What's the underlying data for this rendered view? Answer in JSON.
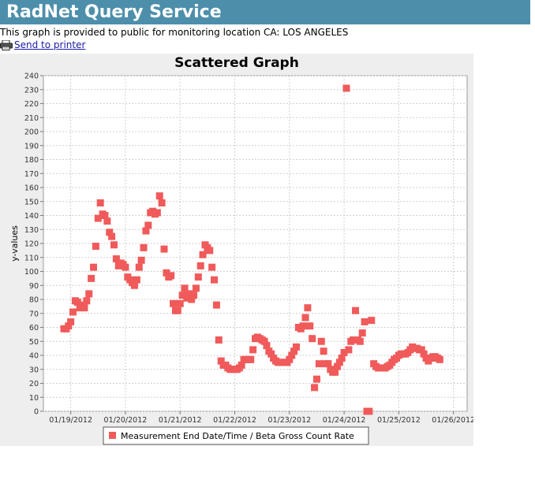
{
  "header": {
    "title": "RadNet Query Service"
  },
  "intro": {
    "text": "This graph is provided to public for monitoring location CA: LOS ANGELES"
  },
  "printer": {
    "link_label": "Send to printer",
    "icon": "printer-icon"
  },
  "colors": {
    "header_bg": "#4d8fab",
    "marker": "#f05a5a",
    "panel_bg": "#eeeeee",
    "plot_bg": "#ffffff",
    "grid": "#d0d0d0"
  },
  "chart_data": {
    "type": "scatter",
    "title": "Scattered Graph",
    "xlabel": "",
    "ylabel": "y-values",
    "grid": true,
    "legend_position": "bottom",
    "ylim": [
      0,
      240
    ],
    "yticks": [
      0,
      10,
      20,
      30,
      40,
      50,
      60,
      70,
      80,
      90,
      100,
      110,
      120,
      130,
      140,
      150,
      160,
      170,
      180,
      190,
      200,
      210,
      220,
      230,
      240
    ],
    "xlim": [
      "01/18/2012 12:00",
      "01/26/2012 06:00"
    ],
    "xticks": [
      "01/19/2012",
      "01/20/2012",
      "01/21/2012",
      "01/22/2012",
      "01/23/2012",
      "01/24/2012",
      "01/25/2012",
      "01/26/2012"
    ],
    "series": [
      {
        "name": "Measurement End Date/Time / Beta Gross Count Rate",
        "points": [
          [
            "01/18/2012 21:00",
            59
          ],
          [
            "01/18/2012 22:00",
            59
          ],
          [
            "01/18/2012 23:00",
            61
          ],
          [
            "01/19/2012 00:00",
            64
          ],
          [
            "01/19/2012 01:00",
            71
          ],
          [
            "01/19/2012 02:00",
            79
          ],
          [
            "01/19/2012 03:00",
            78
          ],
          [
            "01/19/2012 04:00",
            74
          ],
          [
            "01/19/2012 05:00",
            76
          ],
          [
            "01/19/2012 06:00",
            74
          ],
          [
            "01/19/2012 07:00",
            79
          ],
          [
            "01/19/2012 08:00",
            84
          ],
          [
            "01/19/2012 09:00",
            95
          ],
          [
            "01/19/2012 10:00",
            103
          ],
          [
            "01/19/2012 11:00",
            118
          ],
          [
            "01/19/2012 12:00",
            138
          ],
          [
            "01/19/2012 13:00",
            149
          ],
          [
            "01/19/2012 14:00",
            141
          ],
          [
            "01/19/2012 15:00",
            140
          ],
          [
            "01/19/2012 16:00",
            136
          ],
          [
            "01/19/2012 17:00",
            128
          ],
          [
            "01/19/2012 18:00",
            125
          ],
          [
            "01/19/2012 19:00",
            119
          ],
          [
            "01/19/2012 20:00",
            109
          ],
          [
            "01/19/2012 21:00",
            104
          ],
          [
            "01/19/2012 22:00",
            106
          ],
          [
            "01/19/2012 23:00",
            105
          ],
          [
            "01/20/2012 00:00",
            103
          ],
          [
            "01/20/2012 01:00",
            96
          ],
          [
            "01/20/2012 02:00",
            94
          ],
          [
            "01/20/2012 03:00",
            92
          ],
          [
            "01/20/2012 04:00",
            90
          ],
          [
            "01/20/2012 05:00",
            94
          ],
          [
            "01/20/2012 06:00",
            103
          ],
          [
            "01/20/2012 07:00",
            108
          ],
          [
            "01/20/2012 08:00",
            117
          ],
          [
            "01/20/2012 09:00",
            129
          ],
          [
            "01/20/2012 10:00",
            133
          ],
          [
            "01/20/2012 11:00",
            142
          ],
          [
            "01/20/2012 12:00",
            143
          ],
          [
            "01/20/2012 13:00",
            141
          ],
          [
            "01/20/2012 14:00",
            142
          ],
          [
            "01/20/2012 15:00",
            154
          ],
          [
            "01/20/2012 16:00",
            149
          ],
          [
            "01/20/2012 17:00",
            116
          ],
          [
            "01/20/2012 18:00",
            99
          ],
          [
            "01/20/2012 19:00",
            96
          ],
          [
            "01/20/2012 20:00",
            97
          ],
          [
            "01/20/2012 21:00",
            77
          ],
          [
            "01/20/2012 22:00",
            72
          ],
          [
            "01/20/2012 23:00",
            72
          ],
          [
            "01/21/2012 00:00",
            77
          ],
          [
            "01/21/2012 01:00",
            83
          ],
          [
            "01/21/2012 02:00",
            88
          ],
          [
            "01/21/2012 03:00",
            81
          ],
          [
            "01/21/2012 04:00",
            84
          ],
          [
            "01/21/2012 05:00",
            80
          ],
          [
            "01/21/2012 06:00",
            83
          ],
          [
            "01/21/2012 07:00",
            88
          ],
          [
            "01/21/2012 08:00",
            96
          ],
          [
            "01/21/2012 09:00",
            104
          ],
          [
            "01/21/2012 10:00",
            112
          ],
          [
            "01/21/2012 11:00",
            119
          ],
          [
            "01/21/2012 12:00",
            117
          ],
          [
            "01/21/2012 13:00",
            115
          ],
          [
            "01/21/2012 14:00",
            103
          ],
          [
            "01/21/2012 15:00",
            94
          ],
          [
            "01/21/2012 16:00",
            76
          ],
          [
            "01/21/2012 17:00",
            51
          ],
          [
            "01/21/2012 18:00",
            36
          ],
          [
            "01/21/2012 19:00",
            33
          ],
          [
            "01/21/2012 20:00",
            33
          ],
          [
            "01/21/2012 21:00",
            31
          ],
          [
            "01/21/2012 22:00",
            30
          ],
          [
            "01/21/2012 23:00",
            30
          ],
          [
            "01/22/2012 00:00",
            30
          ],
          [
            "01/22/2012 01:00",
            30
          ],
          [
            "01/22/2012 02:00",
            31
          ],
          [
            "01/22/2012 03:00",
            33
          ],
          [
            "01/22/2012 04:00",
            37
          ],
          [
            "01/22/2012 05:00",
            37
          ],
          [
            "01/22/2012 06:00",
            37
          ],
          [
            "01/22/2012 07:00",
            37
          ],
          [
            "01/22/2012 08:00",
            44
          ],
          [
            "01/22/2012 09:00",
            52
          ],
          [
            "01/22/2012 10:00",
            53
          ],
          [
            "01/22/2012 11:00",
            52
          ],
          [
            "01/22/2012 12:00",
            51
          ],
          [
            "01/22/2012 13:00",
            50
          ],
          [
            "01/22/2012 14:00",
            47
          ],
          [
            "01/22/2012 15:00",
            43
          ],
          [
            "01/22/2012 16:00",
            41
          ],
          [
            "01/22/2012 17:00",
            38
          ],
          [
            "01/22/2012 18:00",
            36
          ],
          [
            "01/22/2012 19:00",
            35
          ],
          [
            "01/22/2012 20:00",
            35
          ],
          [
            "01/22/2012 21:00",
            35
          ],
          [
            "01/22/2012 22:00",
            35
          ],
          [
            "01/22/2012 23:00",
            35
          ],
          [
            "01/23/2012 00:00",
            37
          ],
          [
            "01/23/2012 01:00",
            40
          ],
          [
            "01/23/2012 02:00",
            43
          ],
          [
            "01/23/2012 03:00",
            46
          ],
          [
            "01/23/2012 04:00",
            60
          ],
          [
            "01/23/2012 05:00",
            59
          ],
          [
            "01/23/2012 06:00",
            61
          ],
          [
            "01/23/2012 07:00",
            67
          ],
          [
            "01/23/2012 08:00",
            74
          ],
          [
            "01/23/2012 09:00",
            61
          ],
          [
            "01/23/2012 10:00",
            52
          ],
          [
            "01/23/2012 11:00",
            17
          ],
          [
            "01/23/2012 12:00",
            23
          ],
          [
            "01/23/2012 13:00",
            34
          ],
          [
            "01/23/2012 14:00",
            50
          ],
          [
            "01/23/2012 15:00",
            43
          ],
          [
            "01/23/2012 16:00",
            34
          ],
          [
            "01/23/2012 17:00",
            34
          ],
          [
            "01/23/2012 18:00",
            30
          ],
          [
            "01/23/2012 19:00",
            28
          ],
          [
            "01/23/2012 20:00",
            28
          ],
          [
            "01/23/2012 21:00",
            32
          ],
          [
            "01/23/2012 22:00",
            35
          ],
          [
            "01/23/2012 23:00",
            38
          ],
          [
            "01/24/2012 00:00",
            42
          ],
          [
            "01/24/2012 01:00",
            231
          ],
          [
            "01/24/2012 02:00",
            44
          ],
          [
            "01/24/2012 03:00",
            50
          ],
          [
            "01/24/2012 04:00",
            51
          ],
          [
            "01/24/2012 05:00",
            72
          ],
          [
            "01/24/2012 06:00",
            51
          ],
          [
            "01/24/2012 07:00",
            50
          ],
          [
            "01/24/2012 08:00",
            56
          ],
          [
            "01/24/2012 09:00",
            64
          ],
          [
            "01/24/2012 10:00",
            0
          ],
          [
            "01/24/2012 11:00",
            0
          ],
          [
            "01/24/2012 12:00",
            65
          ],
          [
            "01/24/2012 13:00",
            34
          ],
          [
            "01/24/2012 14:00",
            32
          ],
          [
            "01/24/2012 15:00",
            31
          ],
          [
            "01/24/2012 16:00",
            31
          ],
          [
            "01/24/2012 17:00",
            31
          ],
          [
            "01/24/2012 18:00",
            31
          ],
          [
            "01/24/2012 19:00",
            32
          ],
          [
            "01/24/2012 20:00",
            33
          ],
          [
            "01/24/2012 21:00",
            35
          ],
          [
            "01/24/2012 22:00",
            37
          ],
          [
            "01/24/2012 23:00",
            38
          ],
          [
            "01/25/2012 00:00",
            40
          ],
          [
            "01/25/2012 01:00",
            41
          ],
          [
            "01/25/2012 02:00",
            41
          ],
          [
            "01/25/2012 03:00",
            41
          ],
          [
            "01/25/2012 04:00",
            42
          ],
          [
            "01/25/2012 05:00",
            44
          ],
          [
            "01/25/2012 06:00",
            46
          ],
          [
            "01/25/2012 07:00",
            45
          ],
          [
            "01/25/2012 08:00",
            45
          ],
          [
            "01/25/2012 09:00",
            44
          ],
          [
            "01/25/2012 10:00",
            44
          ],
          [
            "01/25/2012 11:00",
            41
          ],
          [
            "01/25/2012 12:00",
            38
          ],
          [
            "01/25/2012 13:00",
            36
          ],
          [
            "01/25/2012 14:00",
            38
          ],
          [
            "01/25/2012 15:00",
            39
          ],
          [
            "01/25/2012 16:00",
            39
          ],
          [
            "01/25/2012 17:00",
            38
          ],
          [
            "01/25/2012 18:00",
            37
          ]
        ]
      }
    ]
  }
}
